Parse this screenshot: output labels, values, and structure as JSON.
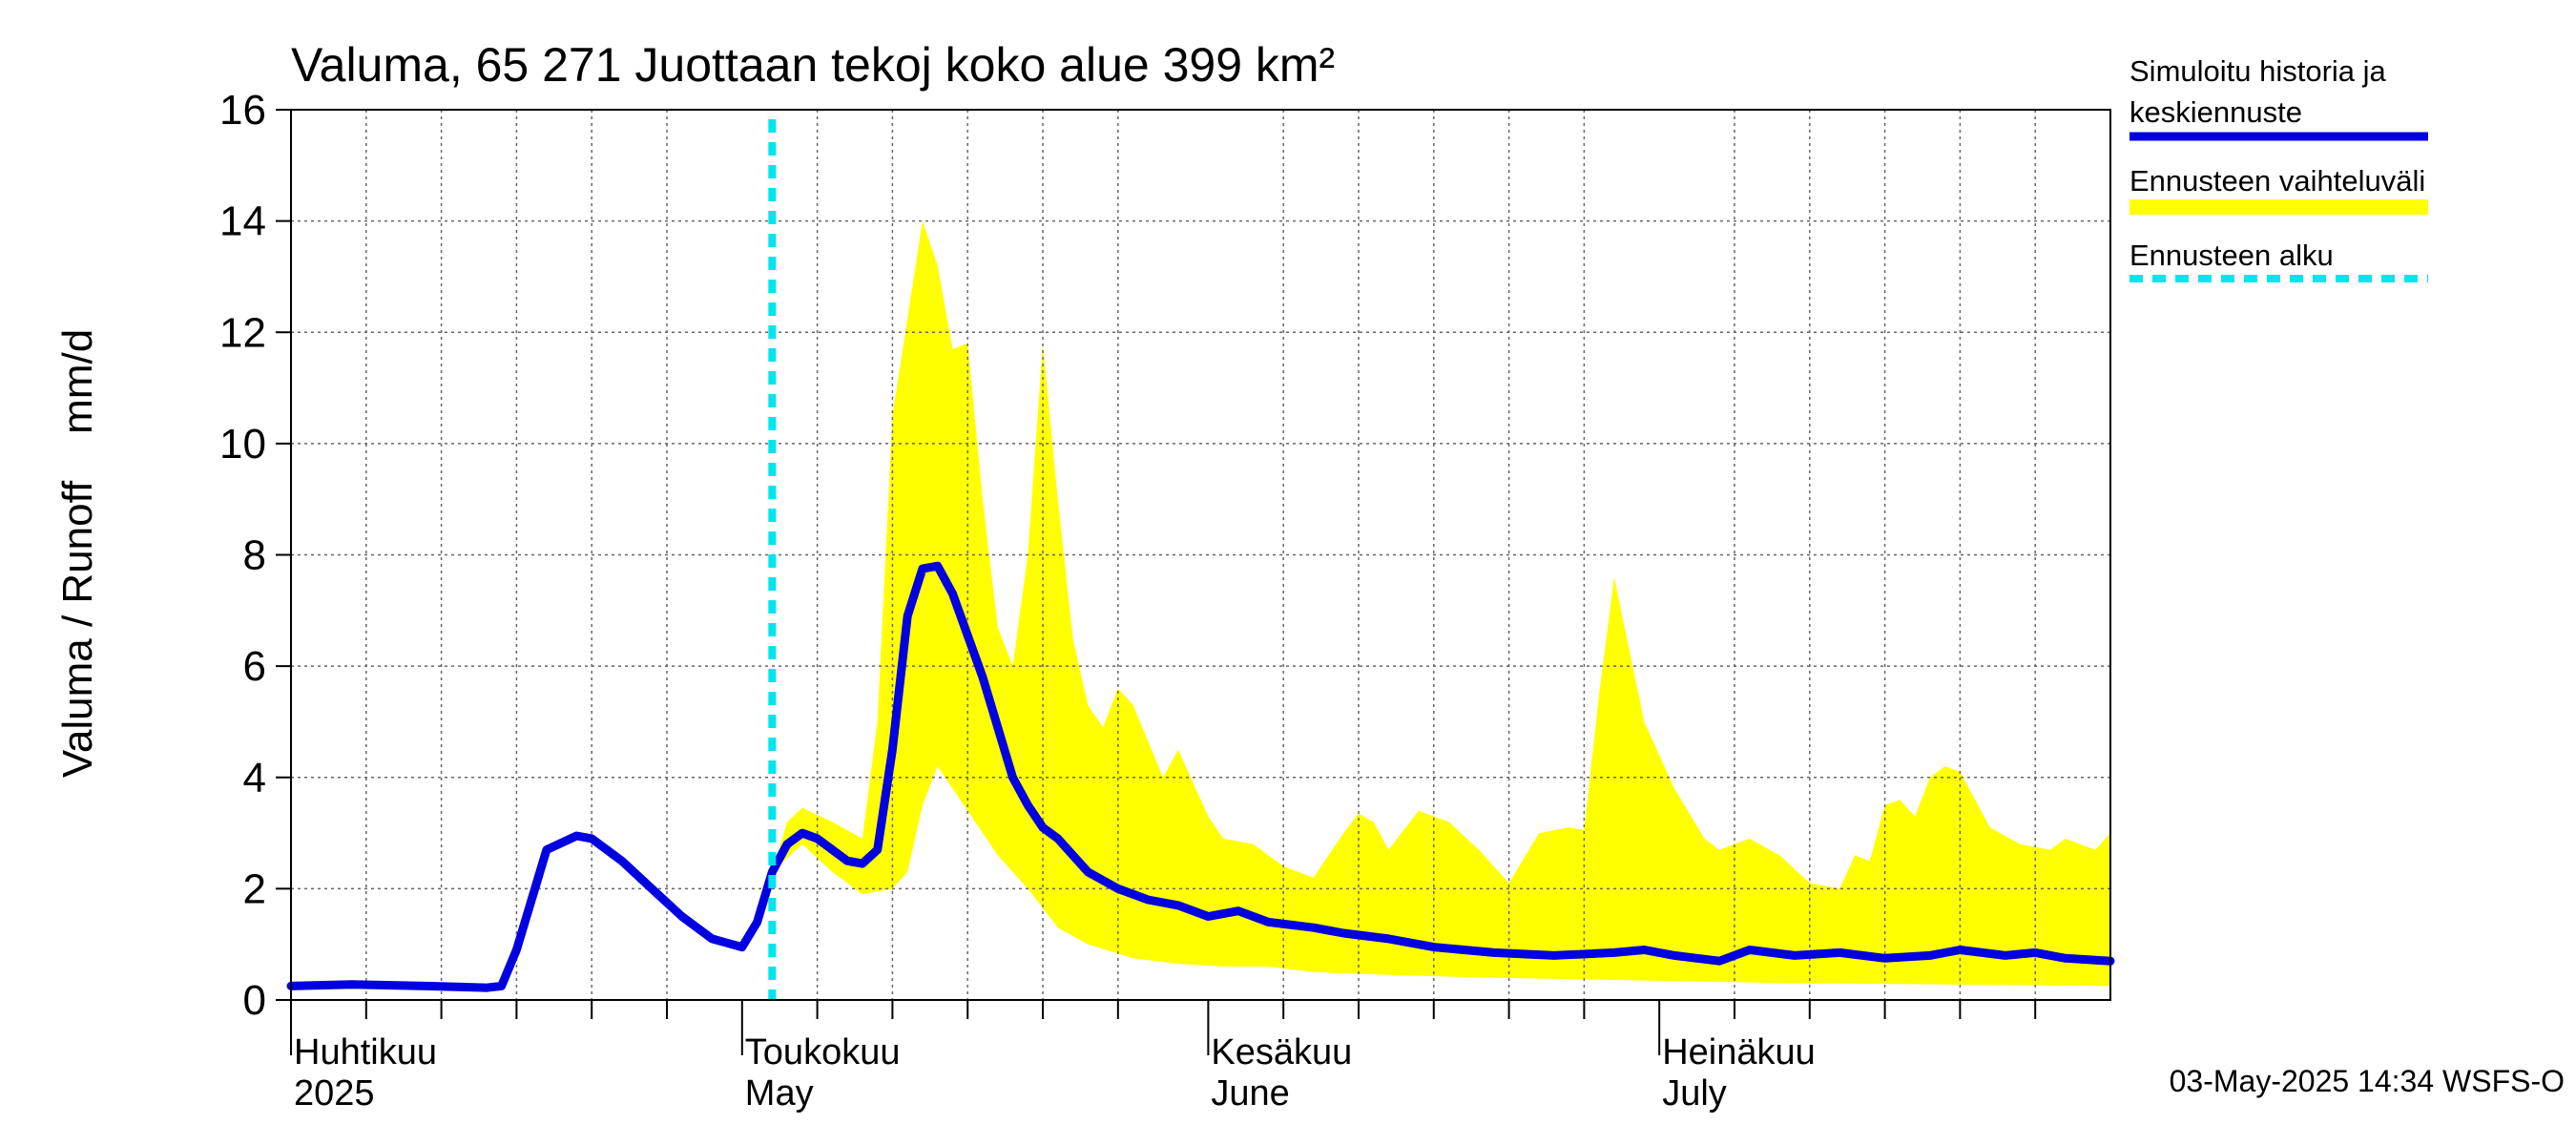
{
  "chart_data": {
    "type": "area",
    "title": "Valuma, 65 271 Juottaan tekoj koko alue 399 km²",
    "ylabel": "Valuma / Runoff    mm/d",
    "ylim": [
      0,
      16
    ],
    "yticks": [
      0,
      2,
      4,
      6,
      8,
      10,
      12,
      14,
      16
    ],
    "x_start": "2025-04-01",
    "x_end": "2025-07-31",
    "grid": true,
    "legend_position": "right",
    "month_labels": [
      {
        "date": "2025-04-01",
        "fi": "Huhtikuu",
        "en": "2025"
      },
      {
        "date": "2025-05-01",
        "fi": "Toukokuu",
        "en": "May"
      },
      {
        "date": "2025-06-01",
        "fi": "Kesäkuu",
        "en": "June"
      },
      {
        "date": "2025-07-01",
        "fi": "Heinäkuu",
        "en": "July"
      }
    ],
    "forecast_start": "2025-05-03",
    "legend": [
      {
        "label_line1": "Simuloitu historia ja",
        "label_line2": "keskiennuste",
        "color": "#0000e0",
        "style": "solid"
      },
      {
        "label_line1": "Ennusteen vaihteluväli",
        "label_line2": "",
        "color": "#ffff00",
        "style": "band"
      },
      {
        "label_line1": "Ennusteen alku",
        "label_line2": "",
        "color": "#00e5ee",
        "style": "dashed"
      }
    ],
    "series": [
      {
        "name": "Simuloitu historia ja keskiennuste",
        "color": "#0000e0",
        "points": [
          [
            "2025-04-01",
            0.25
          ],
          [
            "2025-04-05",
            0.28
          ],
          [
            "2025-04-10",
            0.25
          ],
          [
            "2025-04-14",
            0.22
          ],
          [
            "2025-04-15",
            0.25
          ],
          [
            "2025-04-16",
            0.9
          ],
          [
            "2025-04-18",
            2.7
          ],
          [
            "2025-04-20",
            2.95
          ],
          [
            "2025-04-21",
            2.9
          ],
          [
            "2025-04-23",
            2.5
          ],
          [
            "2025-04-25",
            2.0
          ],
          [
            "2025-04-27",
            1.5
          ],
          [
            "2025-04-29",
            1.1
          ],
          [
            "2025-05-01",
            0.95
          ],
          [
            "2025-05-02",
            1.4
          ],
          [
            "2025-05-03",
            2.3
          ],
          [
            "2025-05-04",
            2.8
          ],
          [
            "2025-05-05",
            3.0
          ],
          [
            "2025-05-06",
            2.9
          ],
          [
            "2025-05-08",
            2.5
          ],
          [
            "2025-05-09",
            2.45
          ],
          [
            "2025-05-10",
            2.7
          ],
          [
            "2025-05-11",
            4.5
          ],
          [
            "2025-05-12",
            6.9
          ],
          [
            "2025-05-13",
            7.75
          ],
          [
            "2025-05-14",
            7.8
          ],
          [
            "2025-05-15",
            7.3
          ],
          [
            "2025-05-17",
            5.8
          ],
          [
            "2025-05-19",
            4.0
          ],
          [
            "2025-05-20",
            3.5
          ],
          [
            "2025-05-21",
            3.1
          ],
          [
            "2025-05-22",
            2.9
          ],
          [
            "2025-05-24",
            2.3
          ],
          [
            "2025-05-26",
            2.0
          ],
          [
            "2025-05-28",
            1.8
          ],
          [
            "2025-05-30",
            1.7
          ],
          [
            "2025-06-01",
            1.5
          ],
          [
            "2025-06-03",
            1.6
          ],
          [
            "2025-06-05",
            1.4
          ],
          [
            "2025-06-08",
            1.3
          ],
          [
            "2025-06-10",
            1.2
          ],
          [
            "2025-06-13",
            1.1
          ],
          [
            "2025-06-16",
            0.95
          ],
          [
            "2025-06-20",
            0.85
          ],
          [
            "2025-06-24",
            0.8
          ],
          [
            "2025-06-28",
            0.85
          ],
          [
            "2025-06-30",
            0.9
          ],
          [
            "2025-07-02",
            0.8
          ],
          [
            "2025-07-05",
            0.7
          ],
          [
            "2025-07-07",
            0.9
          ],
          [
            "2025-07-10",
            0.8
          ],
          [
            "2025-07-13",
            0.85
          ],
          [
            "2025-07-16",
            0.75
          ],
          [
            "2025-07-19",
            0.8
          ],
          [
            "2025-07-21",
            0.9
          ],
          [
            "2025-07-24",
            0.8
          ],
          [
            "2025-07-26",
            0.85
          ],
          [
            "2025-07-28",
            0.75
          ],
          [
            "2025-07-31",
            0.7
          ]
        ]
      },
      {
        "name": "Ennusteen vaihteluväli",
        "color": "#ffff00",
        "upper": [
          [
            "2025-05-03",
            2.3
          ],
          [
            "2025-05-04",
            3.2
          ],
          [
            "2025-05-05",
            3.45
          ],
          [
            "2025-05-07",
            3.2
          ],
          [
            "2025-05-09",
            2.9
          ],
          [
            "2025-05-10",
            5.0
          ],
          [
            "2025-05-11",
            10.5
          ],
          [
            "2025-05-13",
            14.0
          ],
          [
            "2025-05-14",
            13.2
          ],
          [
            "2025-05-15",
            11.7
          ],
          [
            "2025-05-16",
            11.8
          ],
          [
            "2025-05-17",
            9.0
          ],
          [
            "2025-05-18",
            6.7
          ],
          [
            "2025-05-19",
            6.0
          ],
          [
            "2025-05-20",
            8.0
          ],
          [
            "2025-05-21",
            11.8
          ],
          [
            "2025-05-22",
            9.0
          ],
          [
            "2025-05-23",
            6.5
          ],
          [
            "2025-05-24",
            5.3
          ],
          [
            "2025-05-25",
            4.9
          ],
          [
            "2025-05-26",
            5.6
          ],
          [
            "2025-05-27",
            5.3
          ],
          [
            "2025-05-29",
            4.0
          ],
          [
            "2025-05-30",
            4.5
          ],
          [
            "2025-06-01",
            3.3
          ],
          [
            "2025-06-02",
            2.9
          ],
          [
            "2025-06-04",
            2.8
          ],
          [
            "2025-06-06",
            2.4
          ],
          [
            "2025-06-08",
            2.2
          ],
          [
            "2025-06-10",
            3.0
          ],
          [
            "2025-06-11",
            3.35
          ],
          [
            "2025-06-12",
            3.2
          ],
          [
            "2025-06-13",
            2.7
          ],
          [
            "2025-06-15",
            3.4
          ],
          [
            "2025-06-17",
            3.2
          ],
          [
            "2025-06-19",
            2.7
          ],
          [
            "2025-06-21",
            2.1
          ],
          [
            "2025-06-23",
            3.0
          ],
          [
            "2025-06-25",
            3.1
          ],
          [
            "2025-06-26",
            3.05
          ],
          [
            "2025-06-27",
            5.5
          ],
          [
            "2025-06-28",
            7.6
          ],
          [
            "2025-06-30",
            5.0
          ],
          [
            "2025-07-02",
            3.8
          ],
          [
            "2025-07-04",
            2.9
          ],
          [
            "2025-07-05",
            2.7
          ],
          [
            "2025-07-07",
            2.9
          ],
          [
            "2025-07-09",
            2.6
          ],
          [
            "2025-07-11",
            2.1
          ],
          [
            "2025-07-13",
            2.0
          ],
          [
            "2025-07-14",
            2.6
          ],
          [
            "2025-07-15",
            2.5
          ],
          [
            "2025-07-16",
            3.5
          ],
          [
            "2025-07-17",
            3.6
          ],
          [
            "2025-07-18",
            3.3
          ],
          [
            "2025-07-19",
            4.0
          ],
          [
            "2025-07-20",
            4.2
          ],
          [
            "2025-07-21",
            4.1
          ],
          [
            "2025-07-23",
            3.1
          ],
          [
            "2025-07-25",
            2.8
          ],
          [
            "2025-07-27",
            2.7
          ],
          [
            "2025-07-28",
            2.9
          ],
          [
            "2025-07-30",
            2.7
          ],
          [
            "2025-07-31",
            3.0
          ]
        ],
        "lower": [
          [
            "2025-05-03",
            2.3
          ],
          [
            "2025-05-05",
            2.8
          ],
          [
            "2025-05-07",
            2.3
          ],
          [
            "2025-05-09",
            1.9
          ],
          [
            "2025-05-11",
            2.0
          ],
          [
            "2025-05-12",
            2.3
          ],
          [
            "2025-05-13",
            3.5
          ],
          [
            "2025-05-14",
            4.2
          ],
          [
            "2025-05-16",
            3.4
          ],
          [
            "2025-05-18",
            2.6
          ],
          [
            "2025-05-20",
            2.0
          ],
          [
            "2025-05-22",
            1.3
          ],
          [
            "2025-05-24",
            1.0
          ],
          [
            "2025-05-27",
            0.75
          ],
          [
            "2025-05-30",
            0.65
          ],
          [
            "2025-06-02",
            0.6
          ],
          [
            "2025-06-05",
            0.6
          ],
          [
            "2025-06-08",
            0.5
          ],
          [
            "2025-06-13",
            0.45
          ],
          [
            "2025-06-20",
            0.4
          ],
          [
            "2025-06-30",
            0.35
          ],
          [
            "2025-07-10",
            0.3
          ],
          [
            "2025-07-20",
            0.28
          ],
          [
            "2025-07-31",
            0.25
          ]
        ]
      }
    ]
  },
  "footer": {
    "timestamp": "03-May-2025 14:34 WSFS-O"
  }
}
